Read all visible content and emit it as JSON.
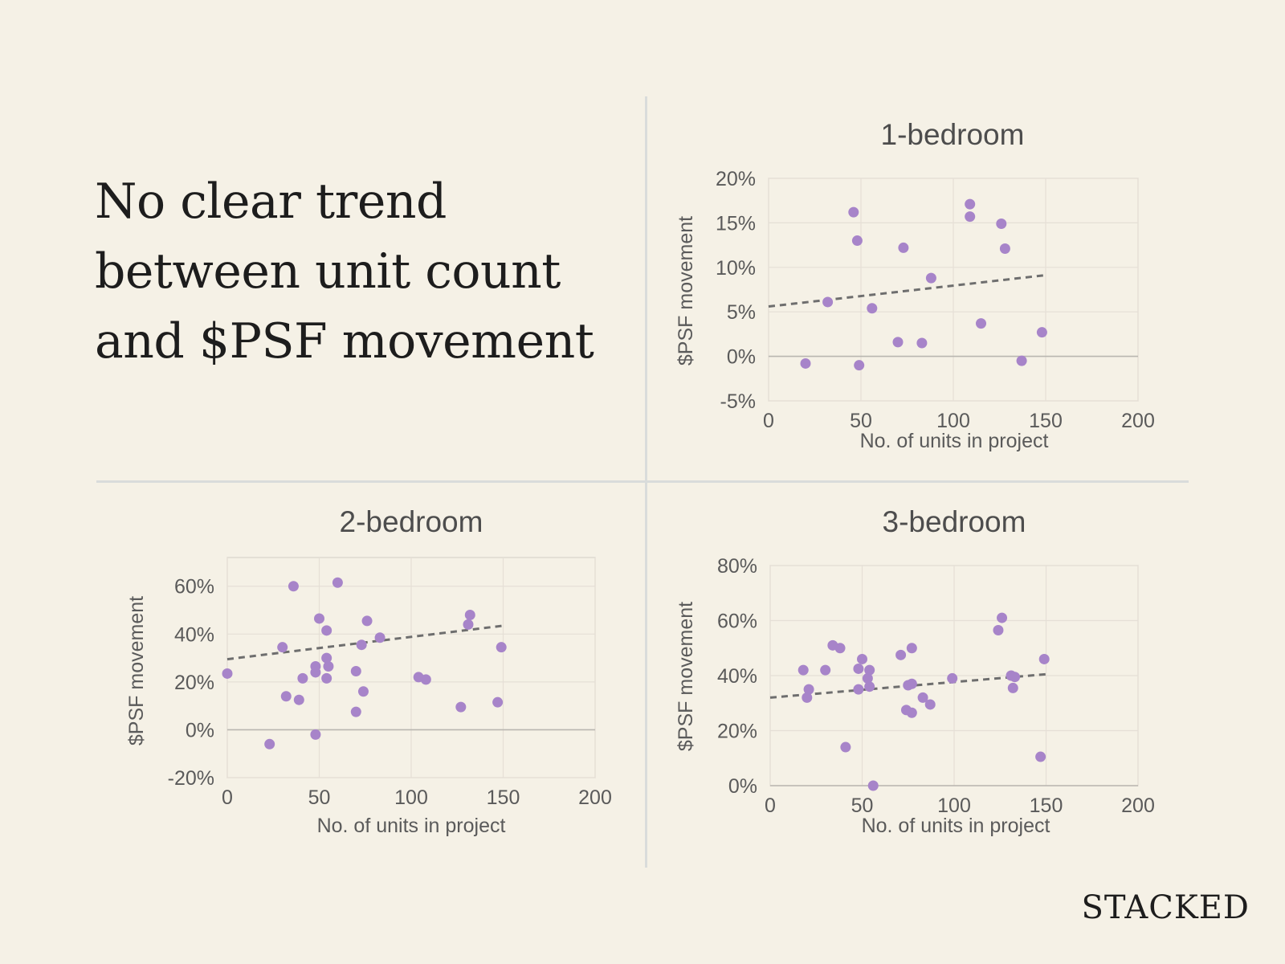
{
  "headline": {
    "lines": [
      "No clear trend",
      "between unit count",
      "and $PSF movement"
    ]
  },
  "brand": "STACKED",
  "chart_data": [
    {
      "id": "one",
      "type": "scatter",
      "title": "1-bedroom",
      "xlabel": "No. of units in project",
      "ylabel": "$PSF movement",
      "xlim": [
        0,
        200
      ],
      "ylim": [
        -5,
        20
      ],
      "xticks": [
        0,
        50,
        100,
        150,
        200
      ],
      "yticks": [
        -5,
        0,
        5,
        10,
        15,
        20
      ],
      "xtick_labels": [
        "0",
        "50",
        "100",
        "150",
        "200"
      ],
      "ytick_labels": [
        "-5%",
        "0%",
        "5%",
        "10%",
        "15%",
        "20%"
      ],
      "grid": true,
      "trendline": {
        "x": [
          0,
          149
        ],
        "y": [
          5.6,
          9.1
        ]
      },
      "points": [
        {
          "x": 20,
          "y": -0.8
        },
        {
          "x": 32,
          "y": 6.1
        },
        {
          "x": 46,
          "y": 16.2
        },
        {
          "x": 48,
          "y": 13.0
        },
        {
          "x": 49,
          "y": -1.0
        },
        {
          "x": 56,
          "y": 5.4
        },
        {
          "x": 70,
          "y": 1.6
        },
        {
          "x": 73,
          "y": 12.2
        },
        {
          "x": 83,
          "y": 1.5
        },
        {
          "x": 88,
          "y": 8.8
        },
        {
          "x": 109,
          "y": 17.1
        },
        {
          "x": 109,
          "y": 15.7
        },
        {
          "x": 115,
          "y": 3.7
        },
        {
          "x": 126,
          "y": 14.9
        },
        {
          "x": 128,
          "y": 12.1
        },
        {
          "x": 137,
          "y": -0.5
        },
        {
          "x": 148,
          "y": 2.7
        }
      ]
    },
    {
      "id": "two",
      "type": "scatter",
      "title": "2-bedroom",
      "xlabel": "No. of units in project",
      "ylabel": "$PSF movement",
      "xlim": [
        0,
        200
      ],
      "ylim": [
        -20,
        72
      ],
      "xticks": [
        0,
        50,
        100,
        150,
        200
      ],
      "yticks": [
        -20,
        0,
        20,
        40,
        60
      ],
      "xtick_labels": [
        "0",
        "50",
        "100",
        "150",
        "200"
      ],
      "ytick_labels": [
        "-20%",
        "0%",
        "20%",
        "40%",
        "60%"
      ],
      "grid": true,
      "trendline": {
        "x": [
          0,
          150
        ],
        "y": [
          29.5,
          43.5
        ]
      },
      "points": [
        {
          "x": 0,
          "y": 23.5
        },
        {
          "x": 23,
          "y": -6
        },
        {
          "x": 30,
          "y": 34.5
        },
        {
          "x": 32,
          "y": 14
        },
        {
          "x": 36,
          "y": 60
        },
        {
          "x": 39,
          "y": 12.5
        },
        {
          "x": 41,
          "y": 21.5
        },
        {
          "x": 48,
          "y": 24
        },
        {
          "x": 48,
          "y": 26.5
        },
        {
          "x": 48,
          "y": -2
        },
        {
          "x": 50,
          "y": 46.5
        },
        {
          "x": 54,
          "y": 41.5
        },
        {
          "x": 54,
          "y": 30
        },
        {
          "x": 55,
          "y": 26.5
        },
        {
          "x": 54,
          "y": 21.5
        },
        {
          "x": 60,
          "y": 61.5
        },
        {
          "x": 70,
          "y": 24.5
        },
        {
          "x": 70,
          "y": 7.5
        },
        {
          "x": 73,
          "y": 35.5
        },
        {
          "x": 74,
          "y": 16
        },
        {
          "x": 76,
          "y": 45.5
        },
        {
          "x": 83,
          "y": 38.5
        },
        {
          "x": 104,
          "y": 22
        },
        {
          "x": 108,
          "y": 21
        },
        {
          "x": 127,
          "y": 9.5
        },
        {
          "x": 131,
          "y": 44
        },
        {
          "x": 132,
          "y": 48
        },
        {
          "x": 147,
          "y": 11.5
        },
        {
          "x": 149,
          "y": 34.5
        }
      ]
    },
    {
      "id": "three",
      "type": "scatter",
      "title": "3-bedroom",
      "xlabel": "No. of units in project",
      "ylabel": "$PSF movement",
      "xlim": [
        0,
        200
      ],
      "ylim": [
        0,
        80
      ],
      "xticks": [
        0,
        50,
        100,
        150,
        200
      ],
      "yticks": [
        0,
        20,
        40,
        60,
        80
      ],
      "xtick_labels": [
        "0",
        "50",
        "100",
        "150",
        "200"
      ],
      "ytick_labels": [
        "0%",
        "20%",
        "40%",
        "60%",
        "80%"
      ],
      "grid": true,
      "trendline": {
        "x": [
          0,
          150
        ],
        "y": [
          32,
          40.5
        ]
      },
      "points": [
        {
          "x": 18,
          "y": 42
        },
        {
          "x": 20,
          "y": 32
        },
        {
          "x": 21,
          "y": 35
        },
        {
          "x": 30,
          "y": 42
        },
        {
          "x": 34,
          "y": 51
        },
        {
          "x": 38,
          "y": 50
        },
        {
          "x": 41,
          "y": 14
        },
        {
          "x": 48,
          "y": 35
        },
        {
          "x": 48,
          "y": 42.5
        },
        {
          "x": 50,
          "y": 46
        },
        {
          "x": 53,
          "y": 39
        },
        {
          "x": 54,
          "y": 36
        },
        {
          "x": 54,
          "y": 42
        },
        {
          "x": 56,
          "y": 0
        },
        {
          "x": 71,
          "y": 47.5
        },
        {
          "x": 74,
          "y": 27.5
        },
        {
          "x": 75,
          "y": 36.5
        },
        {
          "x": 77,
          "y": 37
        },
        {
          "x": 77,
          "y": 26.5
        },
        {
          "x": 77,
          "y": 50
        },
        {
          "x": 83,
          "y": 32
        },
        {
          "x": 87,
          "y": 29.5
        },
        {
          "x": 99,
          "y": 39
        },
        {
          "x": 124,
          "y": 56.5
        },
        {
          "x": 126,
          "y": 61
        },
        {
          "x": 131,
          "y": 40
        },
        {
          "x": 132,
          "y": 35.5
        },
        {
          "x": 133,
          "y": 39.5
        },
        {
          "x": 147,
          "y": 10.5
        },
        {
          "x": 149,
          "y": 46
        }
      ]
    }
  ]
}
